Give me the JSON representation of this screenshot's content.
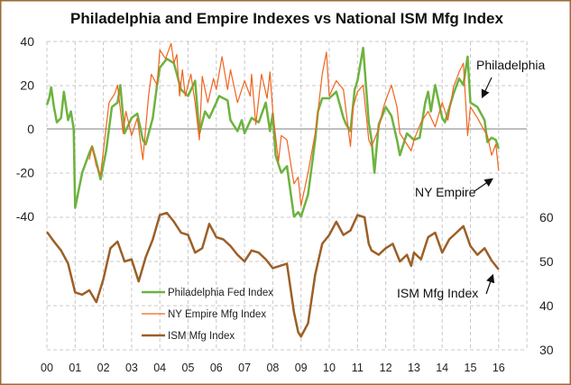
{
  "chart_data": {
    "type": "line",
    "title": "Philadelphia and Empire Indexes vs National ISM Mfg Index",
    "x_tick_labels": [
      "00",
      "01",
      "02",
      "03",
      "04",
      "05",
      "06",
      "07",
      "08",
      "09",
      "10",
      "11",
      "12",
      "13",
      "14",
      "15",
      "16"
    ],
    "xlim": [
      2000,
      2017
    ],
    "left_axis": {
      "ylim": [
        -40,
        100
      ],
      "tick_labels": [
        "40",
        "20",
        "0",
        "-20",
        "-40"
      ],
      "tick_values": [
        40,
        20,
        0,
        -20,
        -40
      ]
    },
    "right_axis": {
      "ylim": [
        30,
        100
      ],
      "tick_labels": [
        "60",
        "50",
        "40",
        "30"
      ],
      "tick_values": [
        60,
        50,
        40,
        30
      ]
    },
    "grid": true,
    "legend": {
      "placement": "bottom-center"
    },
    "series": [
      {
        "name": "Philadelphia Fed Index",
        "axis": "left",
        "color": "#6db33f",
        "x": [
          2000.0,
          2000.08,
          2000.15,
          2000.25,
          2000.35,
          2000.5,
          2000.6,
          2000.75,
          2000.85,
          2000.95,
          2001.0,
          2001.25,
          2001.5,
          2001.6,
          2001.75,
          2001.9,
          2002.1,
          2002.3,
          2002.5,
          2002.6,
          2002.75,
          2003.0,
          2003.2,
          2003.4,
          2003.5,
          2003.75,
          2003.9,
          2004.0,
          2004.25,
          2004.5,
          2004.75,
          2005.0,
          2005.25,
          2005.4,
          2005.6,
          2005.75,
          2006.0,
          2006.1,
          2006.4,
          2006.5,
          2006.75,
          2006.9,
          2007.0,
          2007.25,
          2007.5,
          2007.75,
          2007.9,
          2008.0,
          2008.1,
          2008.3,
          2008.5,
          2008.75,
          2008.9,
          2009.0,
          2009.25,
          2009.5,
          2009.6,
          2009.75,
          2010.0,
          2010.25,
          2010.5,
          2010.6,
          2010.75,
          2010.9,
          2011.0,
          2011.2,
          2011.4,
          2011.5,
          2011.6,
          2011.75,
          2012.0,
          2012.2,
          2012.4,
          2012.5,
          2012.75,
          2013.0,
          2013.2,
          2013.4,
          2013.5,
          2013.6,
          2013.75,
          2014.0,
          2014.1,
          2014.4,
          2014.6,
          2014.75,
          2014.9,
          2015.0,
          2015.25,
          2015.5,
          2015.6,
          2015.75,
          2015.9,
          2016.0
        ],
        "y": [
          11,
          14,
          19,
          10,
          3,
          5,
          17,
          4,
          8,
          0,
          -36,
          -20,
          -11,
          -8,
          -15,
          -23,
          -10,
          10,
          12,
          20,
          -2,
          5,
          7,
          -5,
          -7,
          5,
          20,
          28,
          32,
          30,
          18,
          15,
          22,
          -2,
          8,
          5,
          12,
          15,
          13,
          4,
          -1,
          4,
          -2,
          5,
          3,
          12,
          -1,
          7,
          -12,
          -20,
          -17,
          -40,
          -38,
          -40,
          -30,
          -5,
          8,
          14,
          14,
          17,
          5,
          2,
          -1,
          18,
          22,
          37,
          3,
          -5,
          -20,
          2,
          10,
          6,
          -5,
          -12,
          -2,
          -5,
          -4,
          12,
          17,
          8,
          20,
          5,
          3,
          16,
          23,
          20,
          33,
          12,
          10,
          4,
          -6,
          -4,
          -5,
          -9
        ]
      },
      {
        "name": "NY Empire Mfg Index",
        "axis": "left",
        "color": "#f0641e",
        "x": [
          2001.5,
          2001.6,
          2001.75,
          2001.9,
          2002.0,
          2002.2,
          2002.4,
          2002.5,
          2002.7,
          2002.8,
          2003.0,
          2003.2,
          2003.4,
          2003.6,
          2003.7,
          2003.9,
          2004.0,
          2004.2,
          2004.4,
          2004.5,
          2004.6,
          2004.7,
          2004.8,
          2004.9,
          2005.1,
          2005.25,
          2005.4,
          2005.5,
          2005.7,
          2005.9,
          2006.0,
          2006.2,
          2006.4,
          2006.5,
          2006.75,
          2007.0,
          2007.2,
          2007.25,
          2007.4,
          2007.6,
          2007.8,
          2007.9,
          2008.0,
          2008.2,
          2008.3,
          2008.5,
          2008.75,
          2008.9,
          2009.0,
          2009.25,
          2009.5,
          2009.6,
          2009.75,
          2009.9,
          2010.0,
          2010.25,
          2010.5,
          2010.75,
          2010.85,
          2011.0,
          2011.2,
          2011.4,
          2011.5,
          2011.75,
          2011.9,
          2012.0,
          2012.2,
          2012.4,
          2012.5,
          2012.75,
          2012.9,
          2013.0,
          2013.25,
          2013.5,
          2013.75,
          2014.0,
          2014.2,
          2014.4,
          2014.6,
          2014.75,
          2014.9,
          2015.0,
          2015.25,
          2015.5,
          2015.6,
          2015.75,
          2015.9,
          2016.0
        ],
        "y": [
          -14,
          -8,
          -17,
          -21,
          -10,
          12,
          16,
          20,
          -2,
          8,
          -3,
          5,
          -14,
          15,
          25,
          20,
          36,
          32,
          39,
          30,
          34,
          15,
          27,
          15,
          25,
          12,
          -5,
          24,
          12,
          23,
          18,
          33,
          18,
          27,
          12,
          22,
          15,
          25,
          2,
          25,
          14,
          26,
          8,
          -15,
          -3,
          -5,
          -25,
          -22,
          -35,
          -20,
          -2,
          8,
          25,
          35,
          15,
          22,
          18,
          -8,
          10,
          17,
          20,
          -5,
          -8,
          0,
          9,
          13,
          20,
          10,
          -2,
          -7,
          -10,
          -5,
          3,
          8,
          1,
          12,
          4,
          19,
          26,
          30,
          -3,
          10,
          5,
          -1,
          -3,
          -12,
          -7,
          -19
        ]
      },
      {
        "name": "ISM Mfg Index",
        "axis": "right",
        "color": "#9c5f27",
        "x": [
          2000.0,
          2000.25,
          2000.5,
          2000.75,
          2001.0,
          2001.25,
          2001.5,
          2001.75,
          2002.0,
          2002.25,
          2002.5,
          2002.75,
          2003.0,
          2003.25,
          2003.5,
          2003.75,
          2004.0,
          2004.25,
          2004.5,
          2004.75,
          2005.0,
          2005.25,
          2005.5,
          2005.75,
          2006.0,
          2006.25,
          2006.5,
          2006.75,
          2007.0,
          2007.25,
          2007.5,
          2007.75,
          2008.0,
          2008.25,
          2008.5,
          2008.75,
          2008.9,
          2009.0,
          2009.25,
          2009.5,
          2009.75,
          2010.0,
          2010.25,
          2010.5,
          2010.75,
          2011.0,
          2011.25,
          2011.4,
          2011.5,
          2011.75,
          2012.0,
          2012.25,
          2012.5,
          2012.75,
          2012.9,
          2013.0,
          2013.25,
          2013.5,
          2013.75,
          2014.0,
          2014.25,
          2014.5,
          2014.75,
          2015.0,
          2015.25,
          2015.5,
          2015.75,
          2016.0
        ],
        "y": [
          56.7,
          54.5,
          52.5,
          49.5,
          43,
          42.5,
          43.5,
          40.8,
          46,
          53,
          54.5,
          50,
          50.5,
          45.5,
          51,
          55,
          60.5,
          61,
          59,
          56.5,
          56,
          52,
          53,
          58.5,
          55.5,
          55,
          53.5,
          51.5,
          50,
          52.5,
          52,
          50.5,
          48.5,
          49,
          49.5,
          38.5,
          34,
          33,
          36,
          47,
          54,
          56,
          59,
          56,
          57,
          60.5,
          60,
          54,
          52.5,
          51.5,
          53,
          54,
          50,
          51.5,
          49,
          52,
          50.5,
          55.5,
          56.5,
          52,
          55,
          56.5,
          58,
          53.5,
          51.5,
          53,
          50.2,
          48.2
        ]
      }
    ],
    "annotations": [
      "Philadelphia",
      "NY Empire",
      "ISM Mfg Index"
    ]
  }
}
